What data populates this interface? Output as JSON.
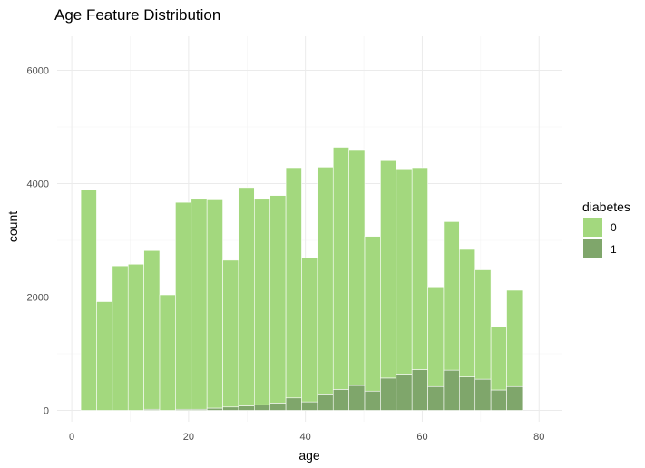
{
  "chart_data": {
    "type": "bar",
    "stacked": true,
    "title": "Age Feature Distribution",
    "xlabel": "age",
    "ylabel": "count",
    "xlim": [
      -2.5,
      84
    ],
    "ylim": [
      -200,
      6600
    ],
    "x_ticks": [
      0,
      20,
      40,
      60,
      80
    ],
    "y_ticks": [
      0,
      2000,
      4000,
      6000
    ],
    "grid": true,
    "legend_placement": "right",
    "bin_width": 2.7,
    "bin_centers": [
      2.9,
      5.6,
      8.3,
      11.0,
      13.7,
      16.4,
      19.1,
      21.8,
      24.5,
      27.2,
      29.9,
      32.6,
      35.3,
      38.0,
      40.7,
      43.4,
      46.1,
      48.8,
      51.5,
      54.2,
      56.9,
      59.6,
      62.3,
      65.0,
      67.7,
      70.4,
      73.1,
      75.8,
      78.5
    ],
    "legend": {
      "title": "diabetes",
      "entries": [
        "0",
        "1"
      ]
    },
    "series": [
      {
        "name": "1",
        "color": "#7fa66b",
        "values": [
          0,
          0,
          0,
          0,
          20,
          0,
          20,
          20,
          40,
          60,
          80,
          100,
          130,
          220,
          150,
          290,
          370,
          440,
          340,
          570,
          640,
          720,
          420,
          710,
          590,
          550,
          360,
          420,
          0
        ]
      },
      {
        "name": "0",
        "color": "#a3d87e",
        "values": [
          3890,
          1920,
          2550,
          2580,
          2800,
          2040,
          3650,
          3720,
          3690,
          2590,
          3850,
          3640,
          3660,
          4060,
          2540,
          4000,
          4270,
          4160,
          2730,
          3850,
          3620,
          3560,
          1760,
          2620,
          2250,
          1930,
          1110,
          1700,
          0
        ]
      }
    ]
  }
}
